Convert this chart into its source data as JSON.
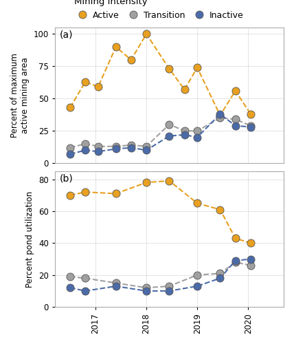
{
  "title": "Mining intensity",
  "legend_labels": [
    "Active",
    "Transition",
    "Inactive"
  ],
  "panel_a_label": "(a)",
  "panel_b_label": "(b)",
  "ylabel_a": "Percent of maximum\nactive mining area",
  "ylabel_b": "Percent pond utilization",
  "x_tick_labels": [
    "2017",
    "2018",
    "2019",
    "2020"
  ],
  "x_ticks": [
    2016.9,
    2017.9,
    2018.9,
    2019.9
  ],
  "panel_a": {
    "active": [
      43,
      63,
      59,
      90,
      80,
      100,
      73,
      57,
      74,
      37,
      56,
      38
    ],
    "transition": [
      12,
      15,
      13,
      13,
      14,
      13,
      30,
      25,
      25,
      35,
      34,
      29
    ],
    "inactive": [
      7,
      10,
      9,
      11,
      12,
      10,
      21,
      22,
      20,
      38,
      29,
      28
    ]
  },
  "panel_b": {
    "active": [
      70,
      72,
      71,
      78,
      79,
      65,
      61,
      43,
      40
    ],
    "transition": [
      19,
      18,
      15,
      12,
      13,
      20,
      21,
      28,
      26
    ],
    "inactive": [
      12,
      10,
      13,
      10,
      10,
      13,
      18,
      29,
      30
    ]
  },
  "bg_color": "#FFFFFF",
  "grid_color": "#AAAAAA",
  "ylim_a": [
    0,
    105
  ],
  "yticks_a": [
    0,
    25,
    50,
    75,
    100
  ],
  "ylim_b": [
    0,
    85
  ],
  "yticks_b": [
    0,
    20,
    40,
    60,
    80
  ],
  "active_color": "#E8A020",
  "transition_color": "#A0A0A0",
  "inactive_color": "#4B6BA8",
  "marker_size": 8,
  "line_width": 1.5,
  "marker_edge_width": 0.6,
  "marker_edge_color": "#555555"
}
